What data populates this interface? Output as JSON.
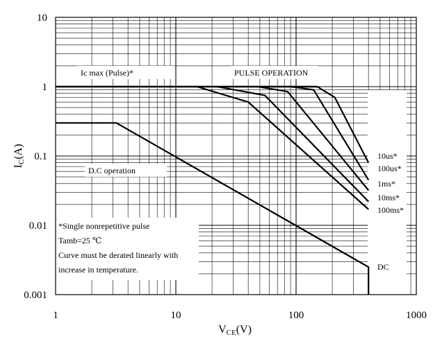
{
  "chart_data": {
    "type": "line",
    "xscale": "log",
    "yscale": "log",
    "xlim": [
      1,
      1000
    ],
    "ylim": [
      0.001,
      10
    ],
    "grid": true,
    "xlabel": {
      "main": "V",
      "sub": "CE",
      "unit": "(V)"
    },
    "ylabel": {
      "main": "I",
      "sub": "C",
      "unit": "(A)"
    },
    "x_ticks": [
      "1",
      "10",
      "100",
      "1000"
    ],
    "y_ticks": [
      "10",
      "1",
      "0.1",
      "0.01",
      "0.001"
    ],
    "series": [
      {
        "name": "DC",
        "x": [
          1,
          3.2,
          400,
          400
        ],
        "y": [
          0.3,
          0.3,
          0.0025,
          0.001
        ]
      },
      {
        "name": "100ms*",
        "x": [
          15,
          40,
          400
        ],
        "y": [
          1,
          0.6,
          0.017
        ]
      },
      {
        "name": "10ms*",
        "x": [
          22,
          55,
          400
        ],
        "y": [
          1,
          0.75,
          0.022
        ]
      },
      {
        "name": "1ms*",
        "x": [
          48,
          85,
          400
        ],
        "y": [
          1,
          0.85,
          0.032
        ]
      },
      {
        "name": "100us*",
        "x": [
          90,
          140,
          400
        ],
        "y": [
          1,
          0.9,
          0.045
        ]
      },
      {
        "name": "10us*",
        "x": [
          150,
          210,
          400
        ],
        "y": [
          1,
          0.7,
          0.08
        ]
      }
    ],
    "ic_max_line": {
      "y": 1,
      "x": [
        1,
        150
      ]
    },
    "series_labels": [
      "10us*",
      "100us*",
      "1ms*",
      "10ms*",
      "100ms*",
      "DC"
    ],
    "annotations": {
      "ic_max": "Ic max (Pulse)*",
      "pulse_operation": "PULSE OPERATION",
      "dc_operation": "D.C operation",
      "note_lines": [
        "*Single nonrepetitive pulse",
        "Tamb=25 ℃",
        "Curve must be derated linearly with",
        "increase in temperature."
      ]
    }
  }
}
